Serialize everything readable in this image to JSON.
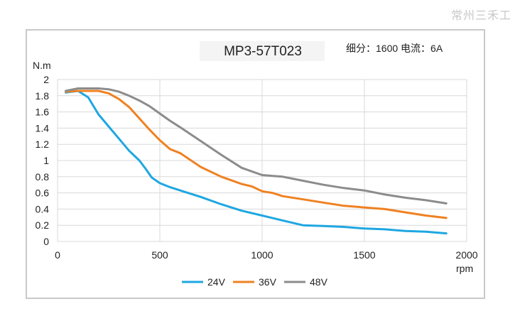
{
  "watermark": "常州三禾工",
  "chart_data": {
    "type": "line",
    "title": "MP3-57T023",
    "subtitle": "细分：1600 电流：6A",
    "ylabel": "N.m",
    "xlabel": "rpm",
    "xlim": [
      0,
      2000
    ],
    "ylim": [
      0,
      2
    ],
    "xticks": [
      0,
      500,
      1000,
      1500,
      2000
    ],
    "yticks": [
      0,
      0.2,
      0.4,
      0.6,
      0.8,
      1,
      1.2,
      1.4,
      1.6,
      1.8,
      2
    ],
    "ytick_labels": [
      "0",
      "0.2",
      "0.4",
      "0.6",
      "0.8",
      "1",
      "1.2",
      "1.4",
      "1.6",
      "1.8",
      "2"
    ],
    "grid": "horizontal and vertical",
    "legend_position": "bottom",
    "series": [
      {
        "name": "24V",
        "color": "#1ea7e1",
        "x": [
          40,
          100,
          150,
          200,
          250,
          300,
          350,
          400,
          430,
          460,
          500,
          550,
          600,
          700,
          800,
          900,
          1000,
          1100,
          1150,
          1200,
          1300,
          1400,
          1500,
          1600,
          1700,
          1800,
          1900
        ],
        "y": [
          1.84,
          1.86,
          1.78,
          1.57,
          1.42,
          1.27,
          1.12,
          1.0,
          0.9,
          0.79,
          0.72,
          0.67,
          0.63,
          0.55,
          0.46,
          0.38,
          0.32,
          0.26,
          0.23,
          0.2,
          0.19,
          0.18,
          0.16,
          0.15,
          0.13,
          0.12,
          0.1
        ]
      },
      {
        "name": "36V",
        "color": "#ef8121",
        "x": [
          40,
          100,
          150,
          200,
          250,
          300,
          350,
          400,
          450,
          500,
          550,
          600,
          700,
          800,
          900,
          950,
          1000,
          1050,
          1100,
          1200,
          1300,
          1400,
          1500,
          1600,
          1700,
          1800,
          1900
        ],
        "y": [
          1.85,
          1.86,
          1.86,
          1.86,
          1.83,
          1.76,
          1.66,
          1.52,
          1.38,
          1.25,
          1.14,
          1.09,
          0.92,
          0.8,
          0.71,
          0.68,
          0.62,
          0.6,
          0.56,
          0.52,
          0.48,
          0.44,
          0.42,
          0.4,
          0.36,
          0.32,
          0.29
        ]
      },
      {
        "name": "48V",
        "color": "#8c8c8c",
        "x": [
          40,
          100,
          150,
          200,
          250,
          300,
          350,
          400,
          450,
          500,
          550,
          600,
          700,
          800,
          900,
          1000,
          1100,
          1200,
          1300,
          1400,
          1500,
          1600,
          1700,
          1800,
          1900
        ],
        "y": [
          1.86,
          1.89,
          1.89,
          1.89,
          1.88,
          1.85,
          1.8,
          1.74,
          1.67,
          1.58,
          1.49,
          1.41,
          1.24,
          1.07,
          0.91,
          0.82,
          0.8,
          0.75,
          0.7,
          0.66,
          0.63,
          0.58,
          0.54,
          0.51,
          0.47
        ]
      }
    ]
  }
}
